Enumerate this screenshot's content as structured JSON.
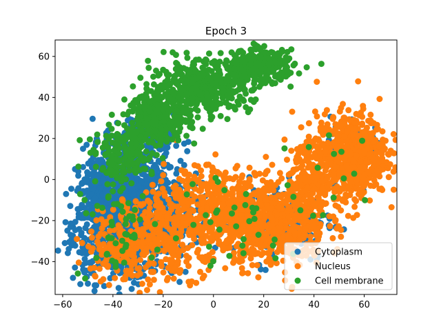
{
  "chart_data": {
    "type": "scatter",
    "title": "Epoch 3",
    "xlabel": "",
    "ylabel": "",
    "xlim": [
      -63,
      73
    ],
    "ylim": [
      -56,
      68
    ],
    "xticks": [
      -60,
      -40,
      -20,
      0,
      20,
      40,
      60
    ],
    "yticks": [
      -40,
      -20,
      0,
      20,
      40,
      60
    ],
    "grid": false,
    "legend": {
      "position": "lower-right"
    },
    "series": [
      {
        "name": "Cytoplasm",
        "color": "#1f77b4",
        "clusters": [
          {
            "cx": -38,
            "cy": -22,
            "sx": 9,
            "sy": 14,
            "n": 700
          },
          {
            "cx": -30,
            "cy": -5,
            "sx": 7,
            "sy": 10,
            "n": 350
          },
          {
            "cx": -45,
            "cy": -10,
            "sx": 5,
            "sy": 12,
            "n": 180
          },
          {
            "cx": -20,
            "cy": -20,
            "sx": 8,
            "sy": 10,
            "n": 220
          },
          {
            "cx": -30,
            "cy": 20,
            "sx": 7,
            "sy": 6,
            "n": 150
          },
          {
            "cx": 25,
            "cy": -20,
            "sx": 12,
            "sy": 10,
            "n": 140
          },
          {
            "cx": 58,
            "cy": 15,
            "sx": 6,
            "sy": 8,
            "n": 60
          }
        ]
      },
      {
        "name": "Nucleus",
        "color": "#ff7f0e",
        "clusters": [
          {
            "cx": 55,
            "cy": 12,
            "sx": 7,
            "sy": 10,
            "n": 650
          },
          {
            "cx": 25,
            "cy": -22,
            "sx": 10,
            "sy": 10,
            "n": 520
          },
          {
            "cx": 38,
            "cy": 0,
            "sx": 6,
            "sy": 10,
            "n": 220
          },
          {
            "cx": 8,
            "cy": -18,
            "sx": 8,
            "sy": 9,
            "n": 260
          },
          {
            "cx": -15,
            "cy": -25,
            "sx": 10,
            "sy": 11,
            "n": 320
          },
          {
            "cx": -35,
            "cy": -32,
            "sx": 8,
            "sy": 10,
            "n": 200
          },
          {
            "cx": -5,
            "cy": -5,
            "sx": 8,
            "sy": 8,
            "n": 120
          }
        ]
      },
      {
        "name": "Cell membrane",
        "color": "#2ca02c",
        "clusters": [
          {
            "cx": -5,
            "cy": 45,
            "sx": 10,
            "sy": 6,
            "n": 450
          },
          {
            "cx": 18,
            "cy": 55,
            "sx": 7,
            "sy": 4,
            "n": 300
          },
          {
            "cx": -22,
            "cy": 30,
            "sx": 6,
            "sy": 6,
            "n": 300
          },
          {
            "cx": -35,
            "cy": 12,
            "sx": 6,
            "sy": 6,
            "n": 160
          },
          {
            "cx": -40,
            "cy": -20,
            "sx": 8,
            "sy": 14,
            "n": 60
          },
          {
            "cx": 10,
            "cy": -20,
            "sx": 18,
            "sy": 12,
            "n": 40
          },
          {
            "cx": 50,
            "cy": 10,
            "sx": 8,
            "sy": 10,
            "n": 12
          }
        ]
      }
    ]
  }
}
